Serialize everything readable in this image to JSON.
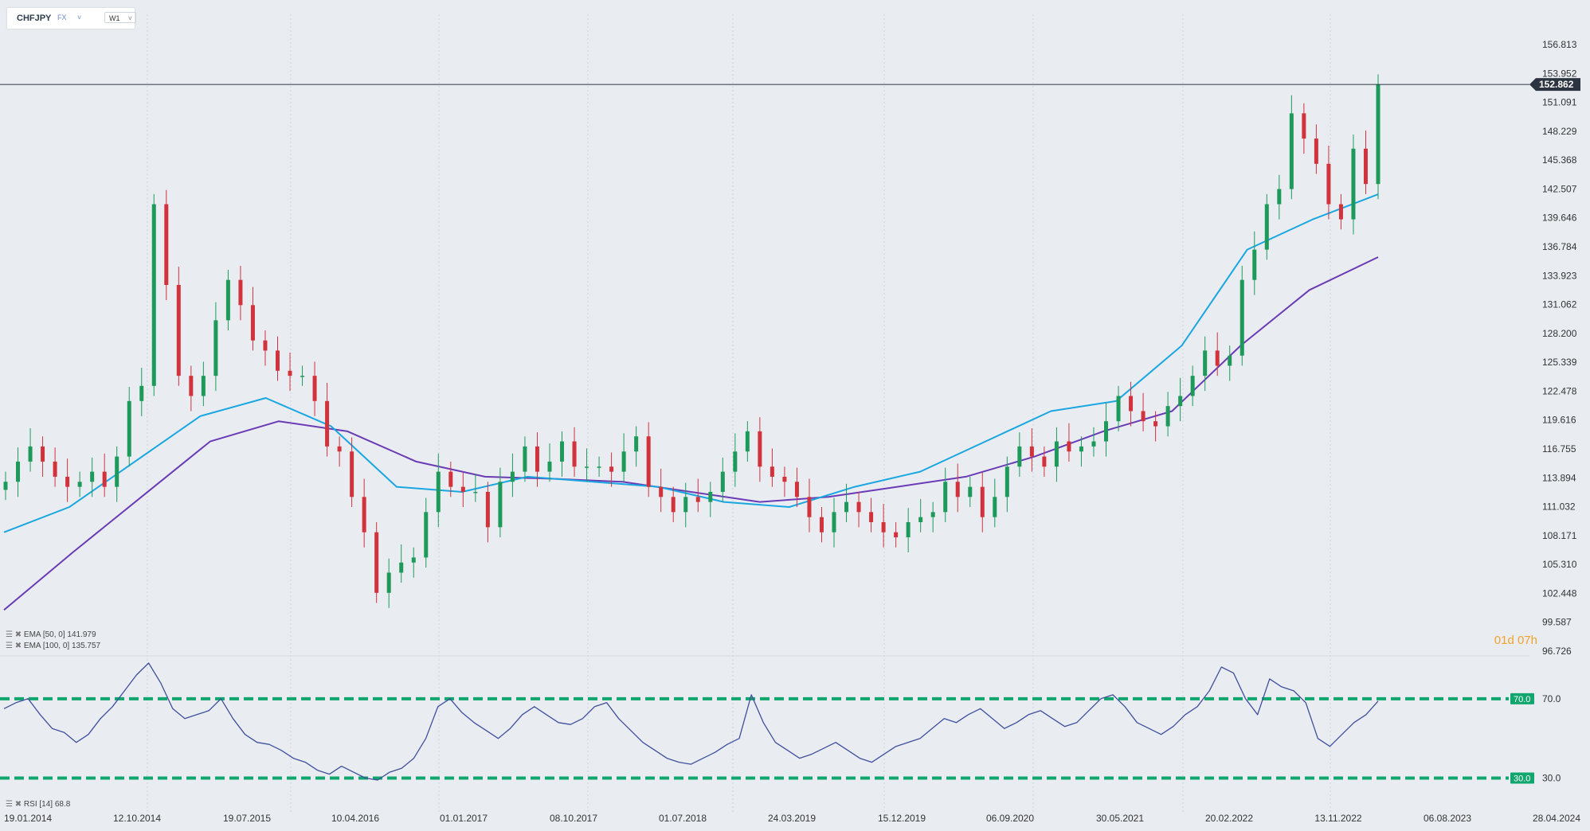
{
  "toolbar": {
    "symbol": "CHFJPY",
    "market": "FX",
    "timeframe": "W1"
  },
  "countdown": "01d 07h",
  "current_price": "152.862",
  "indicators": {
    "ema50": "EMA [50, 0] 141.979",
    "ema100": "EMA [100, 0] 135.757",
    "rsi": "RSI [14] 68.8"
  },
  "colors": {
    "background": "#e9edf1",
    "bull_candle": "#1d9a5a",
    "bear_candle": "#d1323c",
    "ema50": "#1aa6e0",
    "ema100": "#6a3bb5",
    "rsi_line": "#3f4f9c",
    "rsi_levels": "#10a66e",
    "price_tag": "#2b3440"
  },
  "chart_data": [
    {
      "type": "line",
      "subtype": "candlestick",
      "symbol": "CHFJPY",
      "timeframe": "W1",
      "y_tick_labels": [
        "156.813",
        "153.952",
        "151.091",
        "148.229",
        "145.368",
        "142.507",
        "139.646",
        "136.784",
        "133.923",
        "131.062",
        "128.200",
        "125.339",
        "122.478",
        "119.616",
        "116.755",
        "113.894",
        "111.032",
        "108.171",
        "105.310",
        "102.448",
        "99.587",
        "96.726"
      ],
      "x_tick_labels": [
        "19.01.2014",
        "12.10.2014",
        "19.07.2015",
        "10.04.2016",
        "01.01.2017",
        "08.10.2017",
        "01.07.2018",
        "24.03.2019",
        "15.12.2019",
        "06.09.2020",
        "30.05.2021",
        "20.02.2022",
        "13.11.2022",
        "06.08.2023",
        "28.04.2024"
      ],
      "ylim": [
        96.726,
        156.813
      ],
      "last_price": 152.862,
      "series": [
        {
          "name": "EMA [50, 0]",
          "last_value": 141.979,
          "key_values": [
            108.5,
            111.0,
            115.5,
            120.0,
            121.8,
            119.0,
            113.0,
            112.5,
            114.0,
            113.5,
            113.0,
            111.5,
            111.0,
            113.0,
            114.5,
            117.5,
            120.5,
            121.5,
            127.0,
            136.5,
            139.5,
            141.979
          ]
        },
        {
          "name": "EMA [100, 0]",
          "last_value": 135.757,
          "key_values": [
            100.8,
            106.5,
            112.0,
            117.5,
            119.5,
            118.5,
            115.5,
            114.0,
            113.8,
            113.5,
            112.5,
            111.5,
            112.0,
            113.0,
            114.0,
            116.0,
            118.5,
            120.5,
            127.0,
            132.5,
            135.757
          ]
        }
      ],
      "ohlc_approx": [
        113.5,
        115.5,
        117.0,
        115.5,
        114.0,
        113.0,
        113.5,
        114.5,
        113.0,
        116.0,
        121.5,
        123.0,
        141.0,
        133.0,
        124.0,
        122.0,
        124.0,
        129.5,
        133.5,
        131.0,
        127.5,
        126.5,
        124.5,
        124.0,
        124.0,
        121.5,
        117.0,
        116.5,
        112.0,
        108.5,
        102.5,
        104.5,
        105.5,
        106.0,
        110.5,
        114.5,
        113.0,
        112.5,
        112.5,
        109.0,
        113.5,
        114.5,
        117.0,
        114.5,
        115.5,
        117.5,
        115.0,
        115.0,
        115.0,
        114.5,
        116.5,
        118.0,
        113.0,
        112.0,
        110.5,
        112.0,
        111.5,
        112.5,
        114.5,
        116.5,
        118.5,
        115.0,
        114.0,
        113.5,
        112.0,
        110.0,
        108.5,
        110.5,
        111.5,
        110.5,
        109.5,
        108.5,
        108.0,
        109.5,
        110.0,
        110.5,
        113.5,
        112.0,
        113.0,
        110.0,
        112.0,
        115.0,
        117.0,
        116.0,
        115.0,
        117.5,
        116.5,
        117.0,
        117.5,
        119.5,
        122.0,
        120.5,
        119.5,
        119.0,
        121.0,
        122.0,
        124.0,
        126.5,
        125.0,
        126.0,
        133.5,
        136.5,
        141.0,
        142.5,
        150.0,
        147.5,
        145.0,
        141.0,
        139.5,
        146.5,
        143.0,
        152.862
      ]
    },
    {
      "type": "line",
      "name": "RSI [14]",
      "last_value": 68.8,
      "levels": [
        70.0,
        30.0
      ],
      "level_labels": [
        "70.0",
        "30.0"
      ],
      "ylim": [
        25,
        90
      ],
      "values": [
        65,
        68,
        70,
        62,
        55,
        53,
        48,
        52,
        60,
        66,
        74,
        82,
        88,
        78,
        65,
        60,
        62,
        64,
        70,
        60,
        52,
        48,
        47,
        44,
        40,
        38,
        34,
        32,
        36,
        33,
        30,
        29,
        33,
        35,
        40,
        50,
        66,
        70,
        63,
        58,
        54,
        50,
        55,
        62,
        66,
        62,
        58,
        57,
        60,
        66,
        68,
        60,
        54,
        48,
        44,
        40,
        38,
        37,
        40,
        43,
        47,
        50,
        72,
        58,
        48,
        44,
        40,
        42,
        45,
        48,
        44,
        40,
        38,
        42,
        46,
        48,
        50,
        55,
        60,
        58,
        62,
        65,
        60,
        55,
        58,
        62,
        64,
        60,
        56,
        58,
        64,
        70,
        72,
        66,
        58,
        55,
        52,
        56,
        62,
        66,
        74,
        86,
        83,
        70,
        62,
        80,
        76,
        74,
        68,
        50,
        46,
        52,
        58,
        62,
        68.8
      ]
    }
  ]
}
